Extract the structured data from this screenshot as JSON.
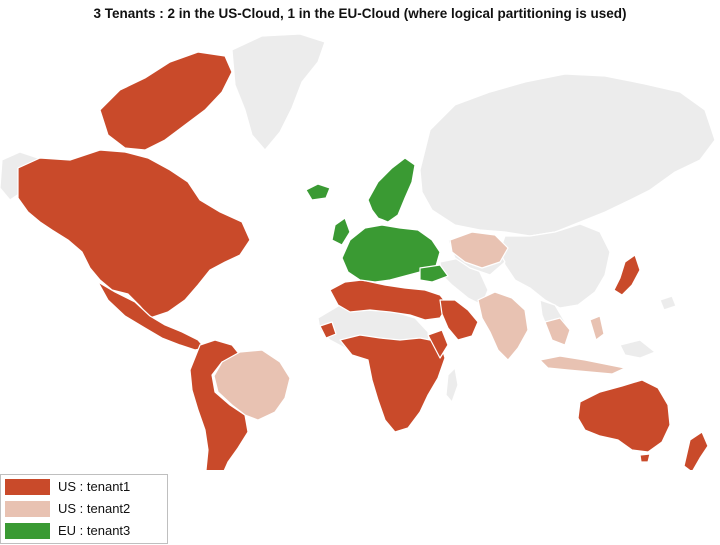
{
  "title": "3 Tenants : 2 in the US-Cloud, 1 in the EU-Cloud (where logical partitioning is used)",
  "colors": {
    "tenant1": "#c94a2a",
    "tenant2": "#e8c2b2",
    "tenant3": "#3a9a33",
    "unassigned": "#ececec"
  },
  "legend": [
    {
      "label": "US : tenant1",
      "color": "#c94a2a"
    },
    {
      "label": "US : tenant2",
      "color": "#e8c2b2"
    },
    {
      "label": "EU : tenant3",
      "color": "#3a9a33"
    }
  ]
}
